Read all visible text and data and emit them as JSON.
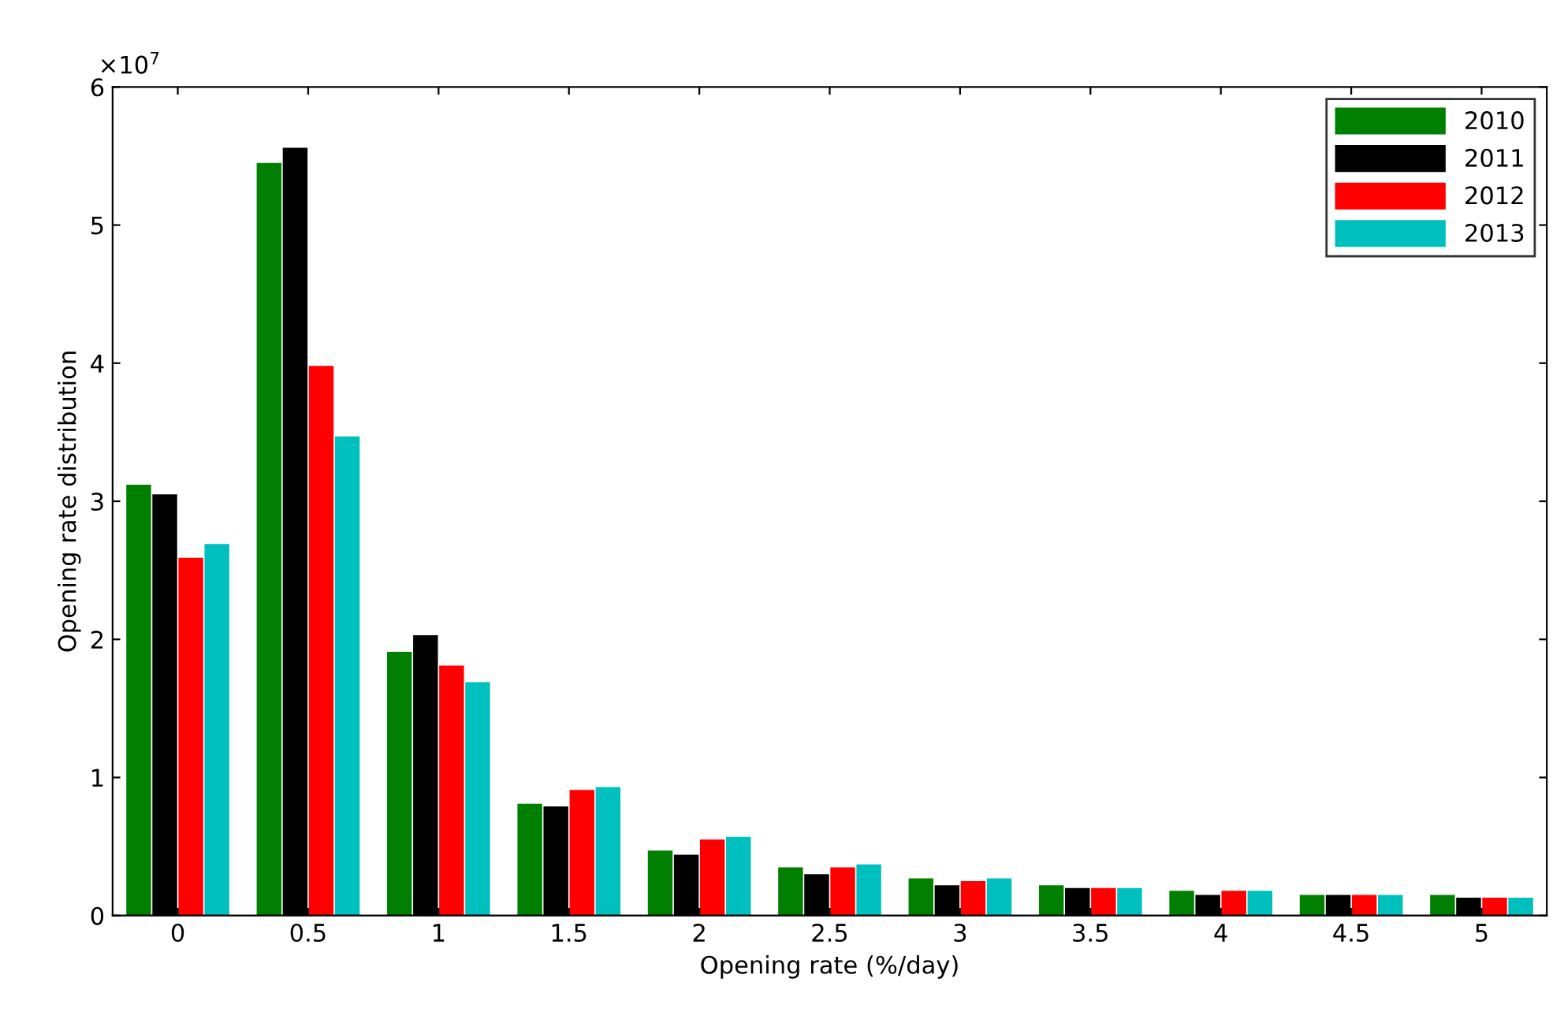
{
  "chart_data": {
    "type": "bar",
    "xlabel": "Opening rate (%/day)",
    "ylabel": "Opening rate distribution",
    "annotations": [
      "×10$^{7}$"
    ],
    "categories": [
      "0",
      "0.5",
      "1",
      "1.5",
      "2",
      "2.5",
      "3",
      "3.5",
      "4",
      "4.5",
      "5"
    ],
    "series": [
      {
        "name": "2010",
        "color": "#007f00",
        "values": [
          3.12,
          5.45,
          1.91,
          0.81,
          0.47,
          0.35,
          0.27,
          0.22,
          0.18,
          0.15,
          0.15
        ]
      },
      {
        "name": "2011",
        "color": "#000000",
        "values": [
          3.05,
          5.56,
          2.03,
          0.79,
          0.44,
          0.3,
          0.22,
          0.2,
          0.15,
          0.15,
          0.13
        ]
      },
      {
        "name": "2012",
        "color": "#ff0000",
        "values": [
          2.59,
          3.98,
          1.81,
          0.91,
          0.55,
          0.35,
          0.25,
          0.2,
          0.18,
          0.15,
          0.13
        ]
      },
      {
        "name": "2013",
        "color": "#00bfbf",
        "values": [
          2.69,
          3.47,
          1.69,
          0.93,
          0.57,
          0.37,
          0.27,
          0.2,
          0.18,
          0.15,
          0.13
        ]
      }
    ],
    "ylim": [
      0,
      6
    ],
    "yticks": [
      0,
      1,
      2,
      3,
      4,
      5,
      6
    ],
    "grid": false,
    "legend": "top right"
  }
}
